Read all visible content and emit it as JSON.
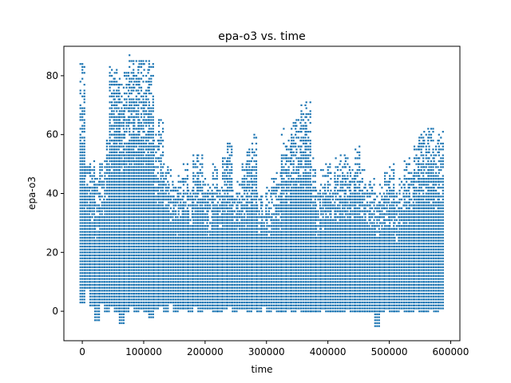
{
  "chart_data": {
    "type": "scatter",
    "title": "epa-o3 vs. time",
    "xlabel": "time",
    "ylabel": "epa-o3",
    "xlim": [
      -30000,
      615000
    ],
    "ylim": [
      -10,
      90
    ],
    "xticks": [
      0,
      100000,
      200000,
      300000,
      400000,
      500000,
      600000
    ],
    "xtick_labels": [
      "0",
      "100000",
      "200000",
      "300000",
      "400000",
      "500000",
      "600000"
    ],
    "yticks": [
      0,
      20,
      40,
      60,
      80
    ],
    "ytick_labels": [
      "0",
      "20",
      "40",
      "60",
      "80"
    ],
    "grid": false,
    "marker_color": "#1f77b4",
    "series": [
      {
        "x": [
          0,
          8000,
          16000,
          24000,
          32000,
          40000,
          48000,
          56000,
          64000,
          72000,
          80000,
          88000,
          96000,
          104000,
          112000,
          120000,
          128000,
          136000,
          144000,
          152000,
          160000,
          168000,
          176000,
          184000,
          192000,
          200000,
          208000,
          216000,
          224000,
          232000,
          240000,
          248000,
          256000,
          264000,
          272000,
          280000,
          288000,
          296000,
          304000,
          312000,
          320000,
          328000,
          336000,
          344000,
          352000,
          360000,
          368000,
          376000,
          384000,
          392000,
          400000,
          408000,
          416000,
          424000,
          432000,
          440000,
          448000,
          456000,
          464000,
          472000,
          480000,
          488000,
          496000,
          504000,
          512000,
          520000,
          528000,
          536000,
          544000,
          552000,
          560000,
          568000,
          576000,
          584000
        ],
        "ymin": [
          3,
          8,
          2,
          -3,
          3,
          0,
          2,
          0,
          -4,
          0,
          2,
          0,
          1,
          0,
          -2,
          1,
          2,
          0,
          3,
          0,
          1,
          1,
          0,
          2,
          0,
          1,
          1,
          0,
          0,
          1,
          2,
          0,
          1,
          1,
          0,
          1,
          0,
          2,
          0,
          1,
          0,
          0,
          1,
          0,
          1,
          0,
          0,
          0,
          0,
          1,
          0,
          0,
          0,
          0,
          1,
          0,
          0,
          0,
          0,
          0,
          -5,
          0,
          1,
          0,
          0,
          1,
          0,
          0,
          1,
          0,
          0,
          1,
          0,
          1
        ],
        "ymax": [
          84,
          50,
          51,
          45,
          50,
          59,
          83,
          82,
          79,
          82,
          87,
          85,
          85,
          85,
          86,
          60,
          65,
          52,
          48,
          43,
          46,
          50,
          43,
          53,
          53,
          45,
          43,
          50,
          42,
          52,
          57,
          43,
          44,
          50,
          56,
          60,
          40,
          40,
          42,
          45,
          47,
          62,
          58,
          64,
          65,
          70,
          71,
          52,
          43,
          49,
          50,
          48,
          52,
          53,
          52,
          50,
          57,
          48,
          43,
          45,
          40,
          43,
          47,
          50,
          40,
          45,
          52,
          52,
          56,
          60,
          62,
          62,
          58,
          61
        ]
      }
    ]
  }
}
